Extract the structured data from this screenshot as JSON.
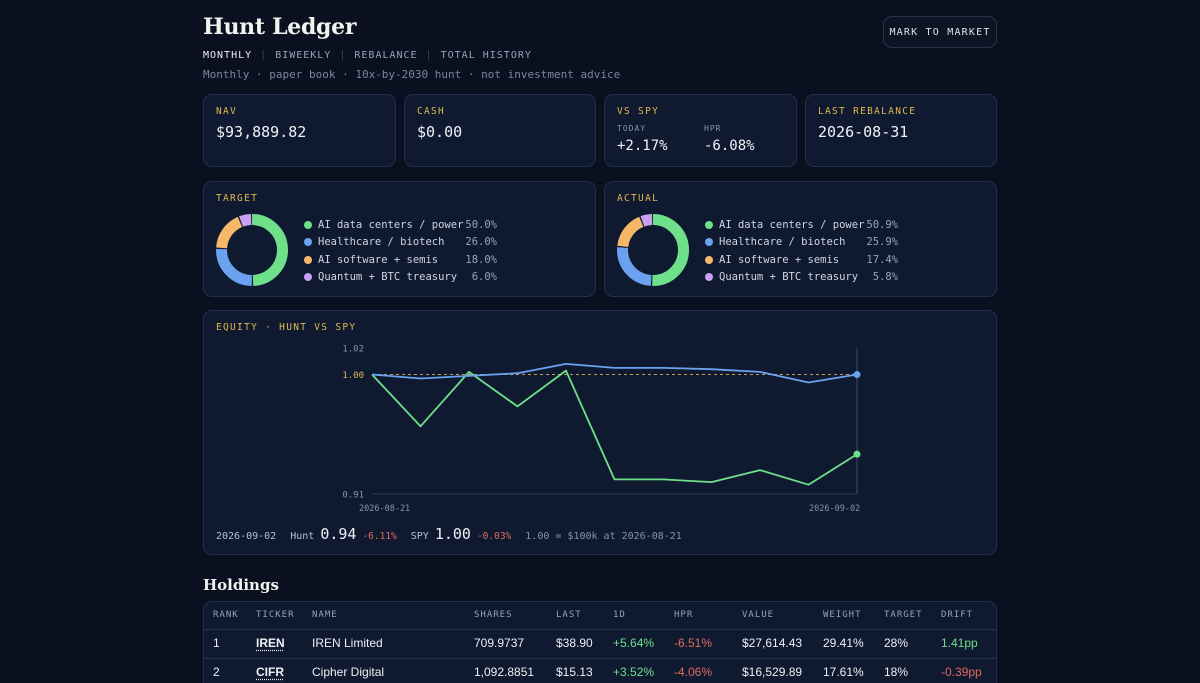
{
  "header": {
    "title": "Hunt Ledger",
    "tabs": [
      "MONTHLY",
      "BIWEEKLY",
      "REBALANCE",
      "TOTAL HISTORY"
    ],
    "active_tab": "MONTHLY",
    "subtitle": "Monthly · paper book · 10x-by-2030 hunt · not investment advice",
    "mtm_button": "MARK TO MARKET"
  },
  "kpis": {
    "nav": {
      "label": "NAV",
      "value": "$93,889.82"
    },
    "cash": {
      "label": "CASH",
      "value": "$0.00"
    },
    "vs_spy": {
      "label": "VS SPY",
      "today_label": "TODAY",
      "today_value": "+2.17%",
      "hpr_label": "HPR",
      "hpr_value": "-6.08%"
    },
    "last_rebalance": {
      "label": "LAST REBALANCE",
      "value": "2026-08-31"
    }
  },
  "target": {
    "title": "TARGET",
    "items": [
      {
        "name": "AI data centers / power",
        "pct": "50.0%",
        "value": 50.0,
        "color": "#6ee08a"
      },
      {
        "name": "Healthcare / biotech",
        "pct": "26.0%",
        "value": 26.0,
        "color": "#6aa2f0"
      },
      {
        "name": "AI software + semis",
        "pct": "18.0%",
        "value": 18.0,
        "color": "#f4b868"
      },
      {
        "name": "Quantum + BTC treasury",
        "pct": "6.0%",
        "value": 6.0,
        "color": "#c9a0f2"
      }
    ]
  },
  "actual": {
    "title": "ACTUAL",
    "items": [
      {
        "name": "AI data centers / power",
        "pct": "50.9%",
        "value": 50.9,
        "color": "#6ee08a"
      },
      {
        "name": "Healthcare / biotech",
        "pct": "25.9%",
        "value": 25.9,
        "color": "#6aa2f0"
      },
      {
        "name": "AI software + semis",
        "pct": "17.4%",
        "value": 17.4,
        "color": "#f4b868"
      },
      {
        "name": "Quantum + BTC treasury",
        "pct": "5.8%",
        "value": 5.8,
        "color": "#c9a0f2"
      }
    ]
  },
  "equity": {
    "title": "EQUITY · HUNT VS SPY",
    "footer": {
      "date": "2026-09-02",
      "hunt_label": "Hunt",
      "hunt_value": "0.94",
      "hunt_change": "-6.11%",
      "spy_label": "SPY",
      "spy_value": "1.00",
      "spy_change": "-0.03%",
      "note": "1.00 = $100k at 2026-08-21"
    }
  },
  "chart_data": {
    "type": "line",
    "title": "EQUITY · HUNT VS SPY",
    "x_tick_labels": [
      "2026-08-21",
      "2026-09-02"
    ],
    "y_tick_labels": [
      "1.02",
      "1.00",
      "0.91"
    ],
    "ylim": [
      0.91,
      1.02
    ],
    "baseline": 1.0,
    "grid": false,
    "series": [
      {
        "name": "Hunt",
        "color": "#6ee08a",
        "values": [
          1.0,
          0.961,
          1.002,
          0.976,
          1.003,
          0.921,
          0.921,
          0.919,
          0.928,
          0.917,
          0.94
        ]
      },
      {
        "name": "SPY",
        "color": "#6aa2f0",
        "values": [
          1.0,
          0.997,
          0.999,
          1.001,
          1.008,
          1.005,
          1.005,
          1.004,
          1.002,
          0.994,
          1.0
        ]
      }
    ]
  },
  "holdings": {
    "title": "Holdings",
    "columns": [
      "RANK",
      "TICKER",
      "NAME",
      "SHARES",
      "LAST",
      "1D",
      "HPR",
      "VALUE",
      "WEIGHT",
      "TARGET",
      "DRIFT"
    ],
    "rows": [
      {
        "rank": "1",
        "ticker": "IREN",
        "name": "IREN Limited",
        "shares": "709.9737",
        "last": "$38.90",
        "d1": "+5.64%",
        "hpr": "-6.51%",
        "value": "$27,614.43",
        "weight": "29.41%",
        "target": "28%",
        "drift": "1.41pp"
      },
      {
        "rank": "2",
        "ticker": "CIFR",
        "name": "Cipher Digital",
        "shares": "1,092.8851",
        "last": "$15.13",
        "d1": "+3.52%",
        "hpr": "-4.06%",
        "value": "$16,529.89",
        "weight": "17.61%",
        "target": "18%",
        "drift": "-0.39pp"
      }
    ]
  }
}
